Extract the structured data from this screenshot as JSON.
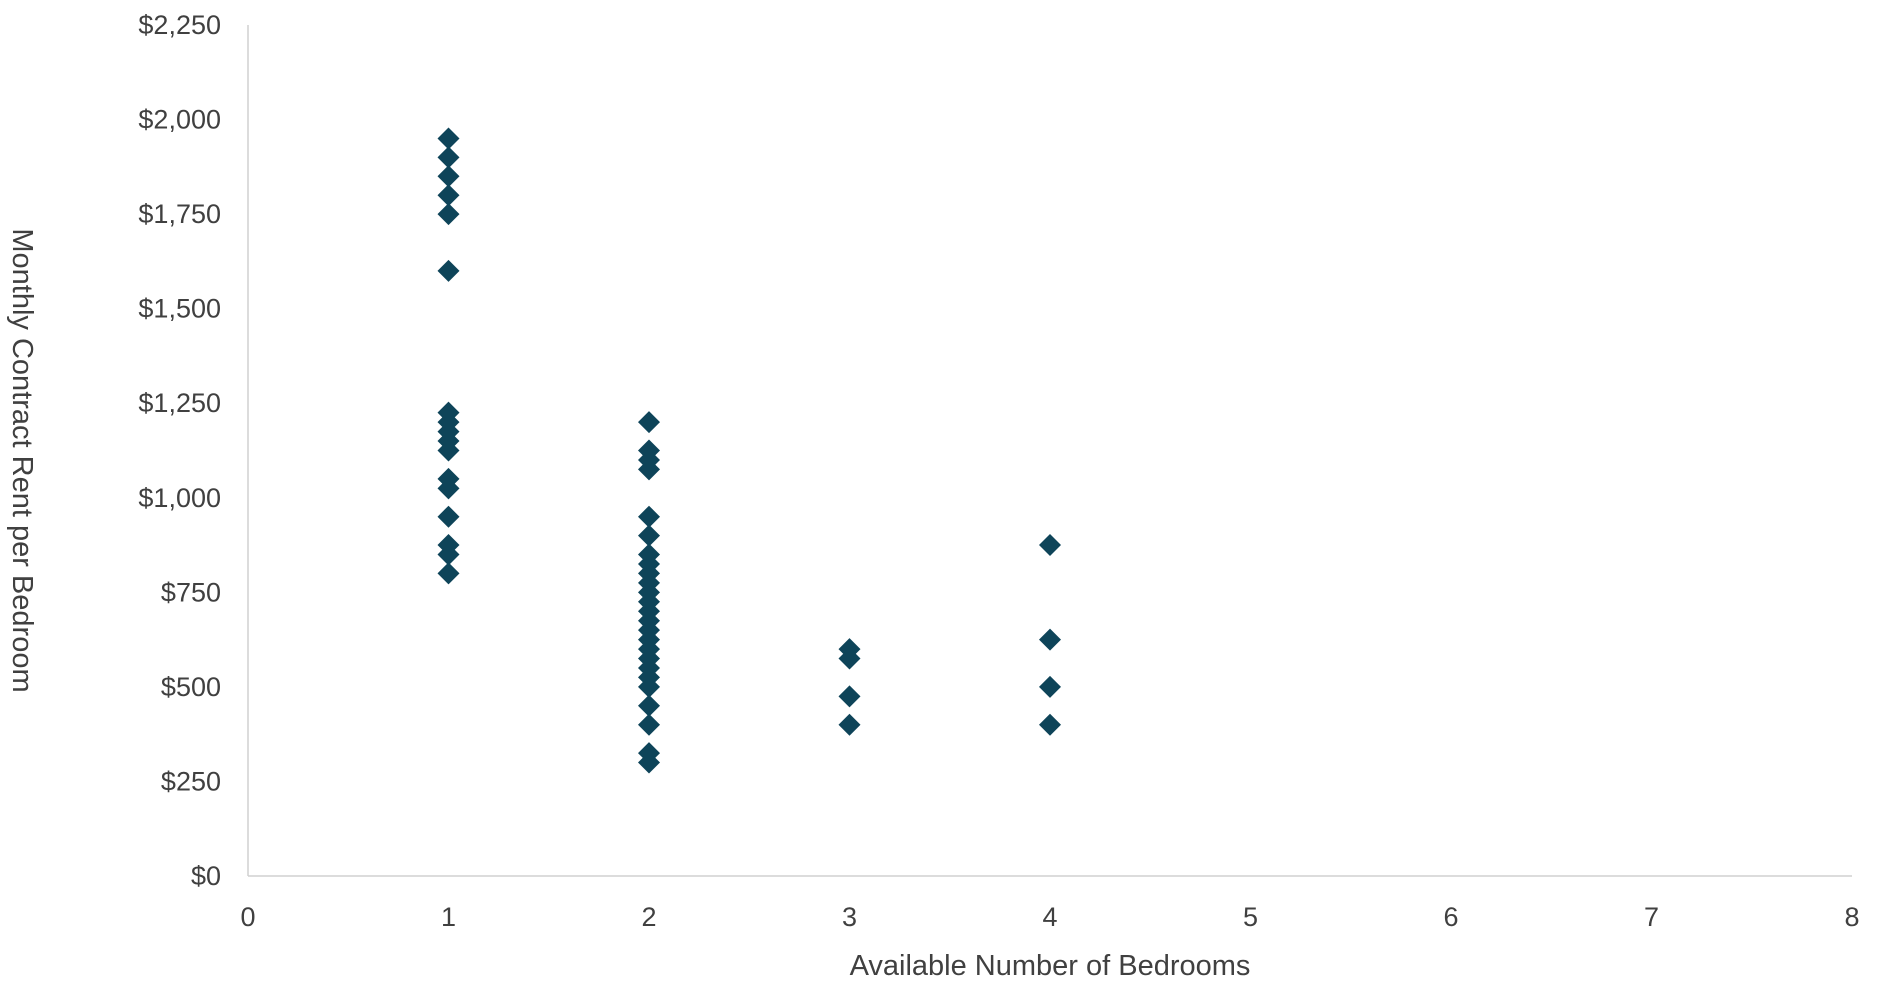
{
  "chart_data": {
    "type": "scatter",
    "title": "",
    "xlabel": "Available Number of Bedrooms",
    "ylabel": "Monthly Contract Rent per Bedroom",
    "xlim": [
      0,
      8
    ],
    "ylim": [
      0,
      2250
    ],
    "x_ticks": [
      "0",
      "1",
      "2",
      "3",
      "4",
      "5",
      "6",
      "7",
      "8"
    ],
    "y_ticks": [
      "$0",
      "$250",
      "$500",
      "$750",
      "$1,000",
      "$1,250",
      "$1,500",
      "$1,750",
      "$2,000",
      "$2,250"
    ],
    "grid": false,
    "legend": "none",
    "marker": "diamond",
    "marker_color": "#0e4459",
    "series": [
      {
        "points": [
          [
            1,
            1950
          ],
          [
            1,
            1900
          ],
          [
            1,
            1850
          ],
          [
            1,
            1800
          ],
          [
            1,
            1750
          ],
          [
            1,
            1600
          ],
          [
            1,
            1225
          ],
          [
            1,
            1200
          ],
          [
            1,
            1175
          ],
          [
            1,
            1150
          ],
          [
            1,
            1125
          ],
          [
            1,
            1050
          ],
          [
            1,
            1025
          ],
          [
            1,
            950
          ],
          [
            1,
            875
          ],
          [
            1,
            850
          ],
          [
            1,
            800
          ],
          [
            2,
            1200
          ],
          [
            2,
            1125
          ],
          [
            2,
            1100
          ],
          [
            2,
            1075
          ],
          [
            2,
            950
          ],
          [
            2,
            900
          ],
          [
            2,
            850
          ],
          [
            2,
            825
          ],
          [
            2,
            800
          ],
          [
            2,
            775
          ],
          [
            2,
            750
          ],
          [
            2,
            725
          ],
          [
            2,
            700
          ],
          [
            2,
            675
          ],
          [
            2,
            650
          ],
          [
            2,
            625
          ],
          [
            2,
            600
          ],
          [
            2,
            575
          ],
          [
            2,
            550
          ],
          [
            2,
            525
          ],
          [
            2,
            500
          ],
          [
            2,
            450
          ],
          [
            2,
            400
          ],
          [
            2,
            325
          ],
          [
            2,
            300
          ],
          [
            3,
            600
          ],
          [
            3,
            575
          ],
          [
            3,
            475
          ],
          [
            3,
            400
          ],
          [
            4,
            875
          ],
          [
            4,
            625
          ],
          [
            4,
            500
          ],
          [
            4,
            400
          ]
        ]
      }
    ]
  }
}
